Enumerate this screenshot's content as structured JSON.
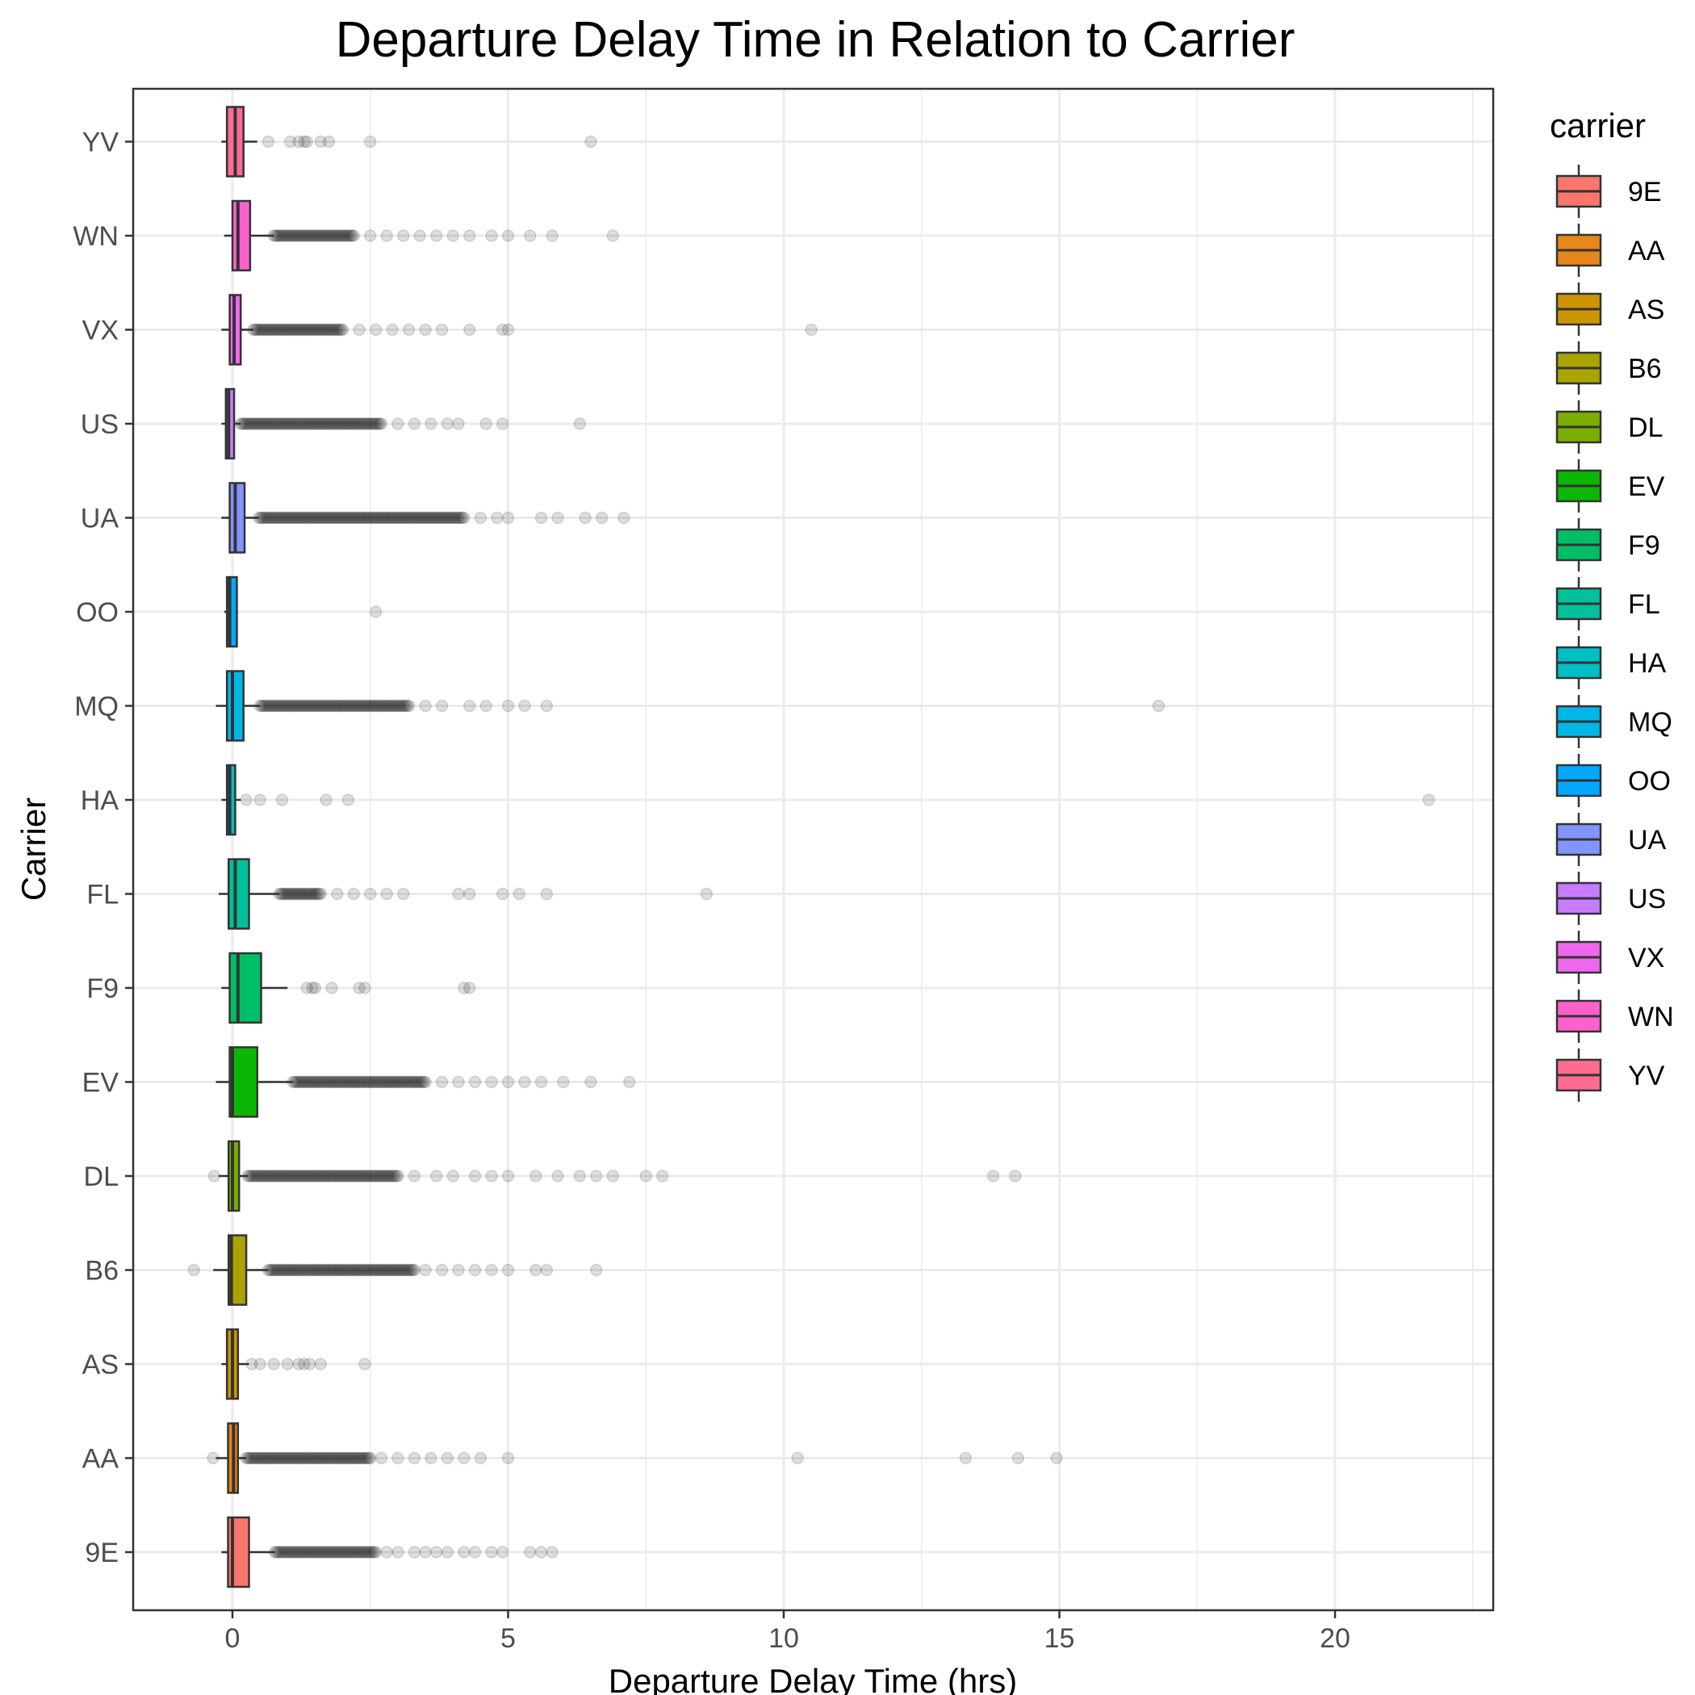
{
  "chart_data": {
    "type": "boxplot",
    "orientation": "horizontal",
    "title": "Departure Delay Time in Relation to Carrier",
    "xlabel": "Departure Delay Time (hrs)",
    "ylabel": "Carrier",
    "xlim": [
      -1.8,
      22.8
    ],
    "xticks": [
      0,
      5,
      10,
      15,
      20
    ],
    "grid": true,
    "legend": {
      "title": "carrier",
      "position": "right"
    },
    "categories": [
      "9E",
      "AA",
      "AS",
      "B6",
      "DL",
      "EV",
      "F9",
      "FL",
      "HA",
      "MQ",
      "OO",
      "UA",
      "US",
      "VX",
      "WN",
      "YV"
    ],
    "colors": [
      "#F8766D",
      "#E7861B",
      "#CC9600",
      "#ABA300",
      "#7CAE00",
      "#0BB702",
      "#00BE67",
      "#00C19A",
      "#00BFC4",
      "#00B8E7",
      "#00A9FF",
      "#8494FF",
      "#C77CFF",
      "#ED68ED",
      "#FF61CC",
      "#FF6C91"
    ],
    "series": [
      {
        "category": "9E",
        "q1": -0.08,
        "median": 0.0,
        "q3": 0.3,
        "whisker_low": -0.2,
        "whisker_high": 0.77,
        "outliers_dense": [
          0.77,
          2.6
        ],
        "outliers": [
          2.8,
          3.0,
          3.3,
          3.5,
          3.7,
          3.9,
          4.2,
          4.4,
          4.7,
          4.9,
          5.4,
          5.6,
          5.8
        ]
      },
      {
        "category": "AA",
        "q1": -0.08,
        "median": 0.02,
        "q3": 0.1,
        "whisker_low": -0.3,
        "whisker_high": 0.25,
        "outliers_dense": [
          0.25,
          2.5
        ],
        "outliers": [
          -0.35,
          2.7,
          3.0,
          3.3,
          3.6,
          3.9,
          4.2,
          4.5,
          5.0,
          10.25,
          13.3,
          14.25,
          14.95
        ]
      },
      {
        "category": "AS",
        "q1": -0.1,
        "median": 0.0,
        "q3": 0.1,
        "whisker_low": -0.2,
        "whisker_high": 0.3,
        "outliers_dense": [],
        "outliers": [
          0.35,
          0.5,
          0.75,
          1.0,
          1.2,
          1.3,
          1.4,
          1.6,
          2.4
        ]
      },
      {
        "category": "B6",
        "q1": -0.07,
        "median": -0.02,
        "q3": 0.25,
        "whisker_low": -0.35,
        "whisker_high": 0.65,
        "outliers_dense": [
          0.65,
          3.3
        ],
        "outliers": [
          -0.7,
          3.5,
          3.8,
          4.1,
          4.4,
          4.7,
          5.0,
          5.5,
          5.7,
          6.6
        ]
      },
      {
        "category": "DL",
        "q1": -0.07,
        "median": 0.0,
        "q3": 0.12,
        "whisker_low": -0.25,
        "whisker_high": 0.28,
        "outliers_dense": [
          0.28,
          3.0
        ],
        "outliers": [
          -0.33,
          3.3,
          3.7,
          4.0,
          4.4,
          4.7,
          5.0,
          5.5,
          5.9,
          6.3,
          6.6,
          6.9,
          7.5,
          7.8,
          13.8,
          14.2
        ]
      },
      {
        "category": "EV",
        "q1": -0.05,
        "median": 0.0,
        "q3": 0.45,
        "whisker_low": -0.3,
        "whisker_high": 1.1,
        "outliers_dense": [
          1.1,
          3.5
        ],
        "outliers": [
          3.8,
          4.1,
          4.4,
          4.7,
          5.0,
          5.3,
          5.6,
          6.0,
          6.5,
          7.2
        ]
      },
      {
        "category": "F9",
        "q1": -0.05,
        "median": 0.1,
        "q3": 0.52,
        "whisker_low": -0.2,
        "whisker_high": 1.0,
        "outliers_dense": [],
        "outliers": [
          1.35,
          1.45,
          1.5,
          1.8,
          2.3,
          2.4,
          4.2,
          4.3
        ]
      },
      {
        "category": "FL",
        "q1": -0.07,
        "median": 0.05,
        "q3": 0.3,
        "whisker_low": -0.25,
        "whisker_high": 0.85,
        "outliers_dense": [
          0.85,
          1.6
        ],
        "outliers": [
          1.9,
          2.2,
          2.5,
          2.8,
          3.1,
          4.1,
          4.3,
          4.9,
          5.2,
          5.7,
          8.6
        ]
      },
      {
        "category": "HA",
        "q1": -0.1,
        "median": -0.05,
        "q3": 0.05,
        "whisker_low": -0.2,
        "whisker_high": 0.15,
        "outliers_dense": [],
        "outliers": [
          0.25,
          0.5,
          0.9,
          1.7,
          2.1,
          21.7
        ]
      },
      {
        "category": "MQ",
        "q1": -0.1,
        "median": 0.0,
        "q3": 0.2,
        "whisker_low": -0.3,
        "whisker_high": 0.5,
        "outliers_dense": [
          0.5,
          3.2
        ],
        "outliers": [
          3.5,
          3.8,
          4.3,
          4.6,
          5.0,
          5.3,
          5.7,
          16.8
        ]
      },
      {
        "category": "OO",
        "q1": -0.1,
        "median": -0.05,
        "q3": 0.08,
        "whisker_low": -0.15,
        "whisker_high": 0.1,
        "outliers_dense": [],
        "outliers": [
          2.6
        ]
      },
      {
        "category": "UA",
        "q1": -0.05,
        "median": 0.05,
        "q3": 0.22,
        "whisker_low": -0.2,
        "whisker_high": 0.48,
        "outliers_dense": [
          0.48,
          4.2
        ],
        "outliers": [
          4.5,
          4.8,
          5.0,
          5.6,
          5.9,
          6.4,
          6.7,
          7.1
        ]
      },
      {
        "category": "US",
        "q1": -0.12,
        "median": -0.07,
        "q3": 0.03,
        "whisker_low": -0.2,
        "whisker_high": 0.15,
        "outliers_dense": [
          0.15,
          2.7
        ],
        "outliers": [
          3.0,
          3.3,
          3.6,
          3.9,
          4.1,
          4.6,
          4.9,
          6.3
        ]
      },
      {
        "category": "VX",
        "q1": -0.05,
        "median": 0.03,
        "q3": 0.15,
        "whisker_low": -0.2,
        "whisker_high": 0.38,
        "outliers_dense": [
          0.38,
          2.0
        ],
        "outliers": [
          2.3,
          2.6,
          2.9,
          3.2,
          3.5,
          3.8,
          4.3,
          4.9,
          5.0,
          10.5
        ]
      },
      {
        "category": "WN",
        "q1": 0.0,
        "median": 0.1,
        "q3": 0.32,
        "whisker_low": -0.15,
        "whisker_high": 0.75,
        "outliers_dense": [
          0.75,
          2.2
        ],
        "outliers": [
          2.5,
          2.8,
          3.1,
          3.4,
          3.7,
          4.0,
          4.3,
          4.7,
          5.0,
          5.4,
          5.8,
          6.9
        ]
      },
      {
        "category": "YV",
        "q1": -0.1,
        "median": 0.05,
        "q3": 0.2,
        "whisker_low": -0.2,
        "whisker_high": 0.45,
        "outliers_dense": [],
        "outliers": [
          0.65,
          1.05,
          1.2,
          1.3,
          1.35,
          1.6,
          1.75,
          2.5,
          6.5
        ]
      }
    ]
  }
}
